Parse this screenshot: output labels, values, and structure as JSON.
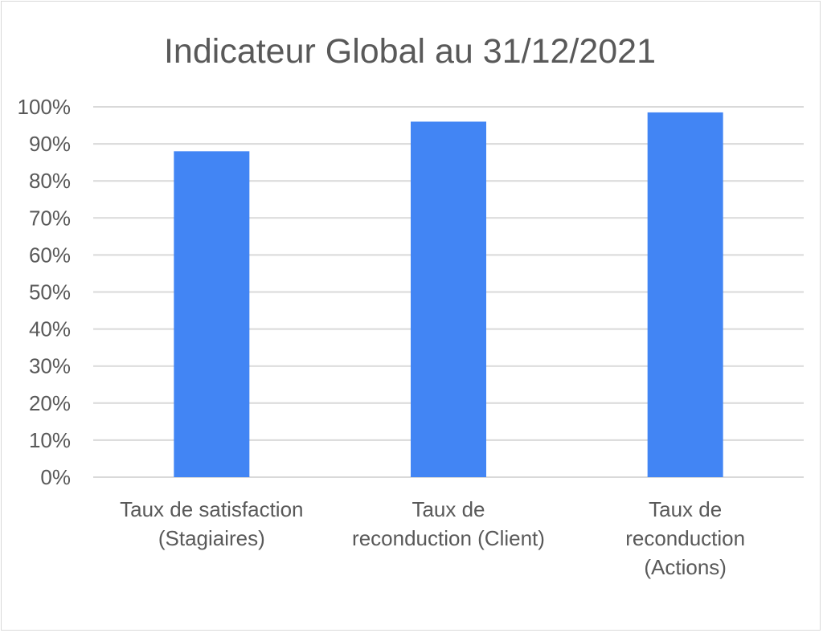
{
  "chart_data": {
    "type": "bar",
    "title": "Indicateur Global au 31/12/2021",
    "xlabel": "",
    "ylabel": "",
    "categories": [
      [
        "Taux de satisfaction",
        "(Stagiaires)"
      ],
      [
        "Taux de",
        "reconduction (Client)"
      ],
      [
        "Taux de",
        "reconduction",
        "(Actions)"
      ]
    ],
    "values": [
      0.88,
      0.96,
      0.985
    ],
    "ylim": [
      0,
      1
    ],
    "y_ticks": [
      "0%",
      "10%",
      "20%",
      "30%",
      "40%",
      "50%",
      "60%",
      "70%",
      "80%",
      "90%",
      "100%"
    ],
    "grid": true,
    "bar_color": "#4285f4"
  }
}
